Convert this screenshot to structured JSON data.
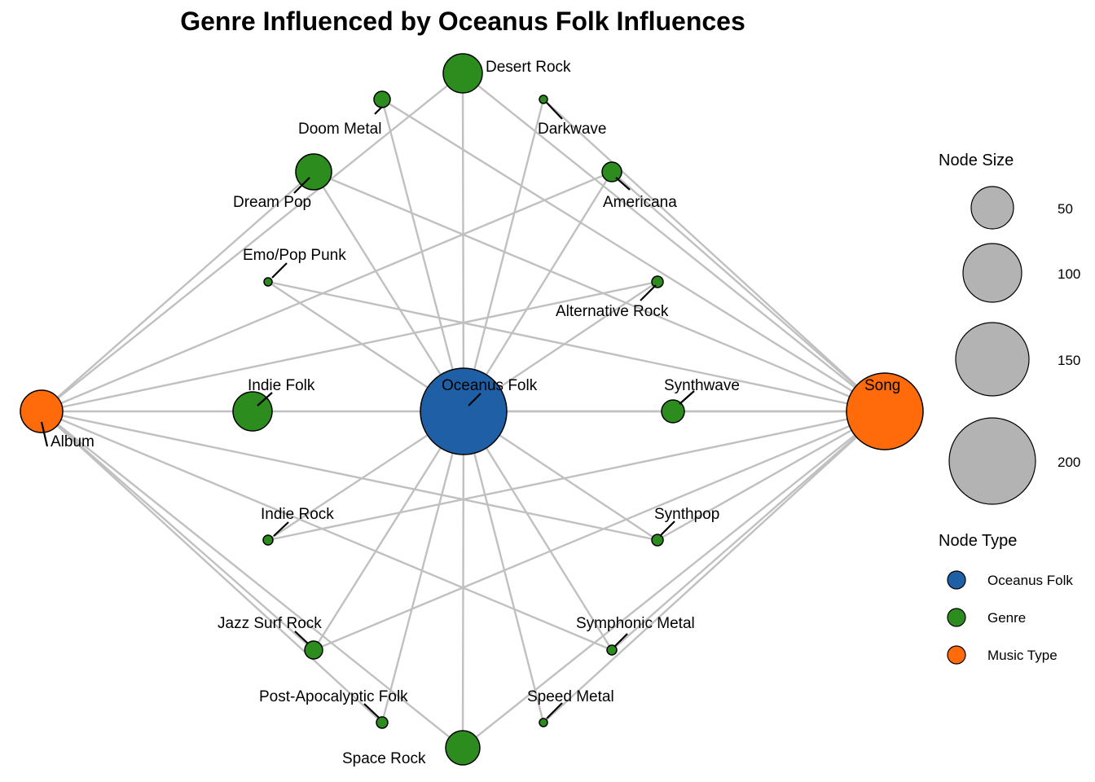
{
  "title": "Genre Influenced by Oceanus Folk Influences",
  "colors": {
    "oceanus_folk": "#1f5fa6",
    "genre": "#2c8c1e",
    "music_type": "#ff6a0a",
    "edge": "#c0c0c0",
    "legend_size_fill": "#b3b3b3"
  },
  "legend": {
    "size_title": "Node Size",
    "size_items": [
      {
        "label": "50",
        "value": 50
      },
      {
        "label": "100",
        "value": 100
      },
      {
        "label": "150",
        "value": 150
      },
      {
        "label": "200",
        "value": 200
      }
    ],
    "type_title": "Node Type",
    "type_items": [
      {
        "label": "Oceanus Folk",
        "type": "oceanus_folk"
      },
      {
        "label": "Genre",
        "type": "genre"
      },
      {
        "label": "Music Type",
        "type": "music_type"
      }
    ]
  },
  "nodes": [
    {
      "id": "oceanus_folk",
      "label": "Oceanus Folk",
      "type": "oceanus_folk"
    },
    {
      "id": "song",
      "label": "Song",
      "type": "music_type"
    },
    {
      "id": "album",
      "label": "Album",
      "type": "music_type"
    },
    {
      "id": "desert_rock",
      "label": "Desert Rock",
      "type": "genre"
    },
    {
      "id": "doom_metal",
      "label": "Doom Metal",
      "type": "genre"
    },
    {
      "id": "darkwave",
      "label": "Darkwave",
      "type": "genre"
    },
    {
      "id": "dream_pop",
      "label": "Dream Pop",
      "type": "genre"
    },
    {
      "id": "americana",
      "label": "Americana",
      "type": "genre"
    },
    {
      "id": "emo_pop_punk",
      "label": "Emo/Pop Punk",
      "type": "genre"
    },
    {
      "id": "alternative_rock",
      "label": "Alternative Rock",
      "type": "genre"
    },
    {
      "id": "indie_folk",
      "label": "Indie Folk",
      "type": "genre"
    },
    {
      "id": "synthwave",
      "label": "Synthwave",
      "type": "genre"
    },
    {
      "id": "indie_rock",
      "label": "Indie Rock",
      "type": "genre"
    },
    {
      "id": "synthpop",
      "label": "Synthpop",
      "type": "genre"
    },
    {
      "id": "jazz_surf_rock",
      "label": "Jazz Surf Rock",
      "type": "genre"
    },
    {
      "id": "symphonic_metal",
      "label": "Symphonic Metal",
      "type": "genre"
    },
    {
      "id": "post_apocalyptic_folk",
      "label": "Post-Apocalyptic Folk",
      "type": "genre"
    },
    {
      "id": "speed_metal",
      "label": "Speed Metal",
      "type": "genre"
    },
    {
      "id": "space_rock",
      "label": "Space Rock",
      "type": "genre"
    }
  ],
  "edges": [
    [
      "oceanus_folk",
      "desert_rock"
    ],
    [
      "oceanus_folk",
      "doom_metal"
    ],
    [
      "oceanus_folk",
      "darkwave"
    ],
    [
      "oceanus_folk",
      "dream_pop"
    ],
    [
      "oceanus_folk",
      "americana"
    ],
    [
      "oceanus_folk",
      "emo_pop_punk"
    ],
    [
      "oceanus_folk",
      "alternative_rock"
    ],
    [
      "oceanus_folk",
      "indie_folk"
    ],
    [
      "oceanus_folk",
      "synthwave"
    ],
    [
      "oceanus_folk",
      "indie_rock"
    ],
    [
      "oceanus_folk",
      "synthpop"
    ],
    [
      "oceanus_folk",
      "jazz_surf_rock"
    ],
    [
      "oceanus_folk",
      "symphonic_metal"
    ],
    [
      "oceanus_folk",
      "post_apocalyptic_folk"
    ],
    [
      "oceanus_folk",
      "speed_metal"
    ],
    [
      "oceanus_folk",
      "space_rock"
    ],
    [
      "song",
      "desert_rock"
    ],
    [
      "song",
      "doom_metal"
    ],
    [
      "song",
      "darkwave"
    ],
    [
      "song",
      "dream_pop"
    ],
    [
      "song",
      "americana"
    ],
    [
      "song",
      "emo_pop_punk"
    ],
    [
      "song",
      "synthwave"
    ],
    [
      "song",
      "indie_rock"
    ],
    [
      "song",
      "synthpop"
    ],
    [
      "song",
      "jazz_surf_rock"
    ],
    [
      "song",
      "symphonic_metal"
    ],
    [
      "song",
      "speed_metal"
    ],
    [
      "song",
      "space_rock"
    ],
    [
      "song",
      "oceanus_folk"
    ],
    [
      "album",
      "desert_rock"
    ],
    [
      "album",
      "dream_pop"
    ],
    [
      "album",
      "americana"
    ],
    [
      "album",
      "alternative_rock"
    ],
    [
      "album",
      "indie_folk"
    ],
    [
      "album",
      "synthpop"
    ],
    [
      "album",
      "symphonic_metal"
    ],
    [
      "album",
      "jazz_surf_rock"
    ],
    [
      "album",
      "post_apocalyptic_folk"
    ],
    [
      "album",
      "space_rock"
    ]
  ]
}
